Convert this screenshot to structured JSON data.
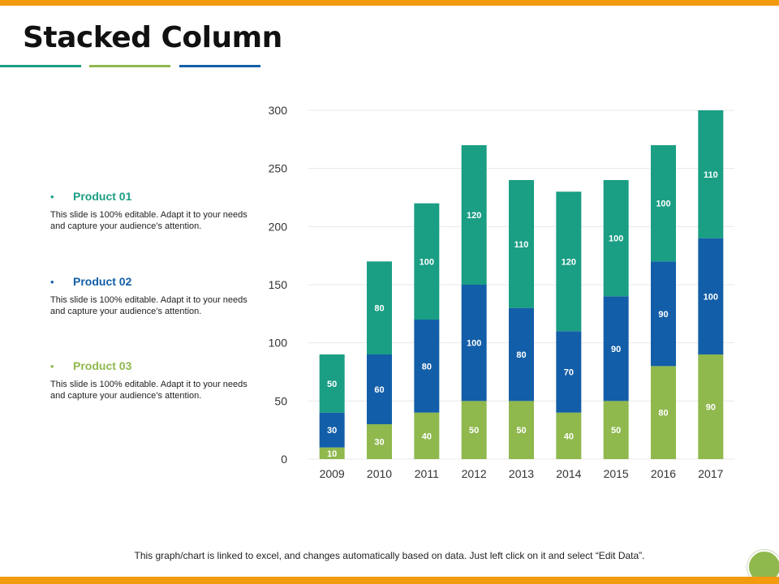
{
  "slide": {
    "title": "Stacked Column",
    "footer_note": "This graph/chart is linked to excel, and changes automatically based on data. Just left click on it and select “Edit Data”.",
    "bullet_glyph": "•"
  },
  "colors": {
    "top_bar": "#f29b0f",
    "bottom_bar": "#f29b0f",
    "accent_teal": "#1a9e84",
    "accent_green": "#8fb84d",
    "accent_blue": "#135ea8",
    "product_01": "#1a9e84",
    "product_02": "#135ea8",
    "product_03": "#8fb84d",
    "gridline": "#e8e8e8",
    "data_label": "#ffffff",
    "tick_label": "#333333"
  },
  "legend": [
    {
      "title": "Product 01",
      "description": "This slide is 100% editable. Adapt it to your needs and capture your audience’s attention."
    },
    {
      "title": "Product 02",
      "description": "This slide is 100% editable. Adapt it to your needs and capture your audience’s attention."
    },
    {
      "title": "Product 03",
      "description": "This slide is 100% editable. Adapt it to your needs and capture your audience’s attention."
    }
  ],
  "chart_data": {
    "type": "bar",
    "stacked": true,
    "title": "",
    "xlabel": "",
    "ylabel": "",
    "categories": [
      "2009",
      "2010",
      "2011",
      "2012",
      "2013",
      "2014",
      "2015",
      "2016",
      "2017"
    ],
    "series": [
      {
        "name": "Product 03",
        "color": "#8fb84d",
        "values": [
          10,
          30,
          40,
          50,
          50,
          40,
          50,
          80,
          90
        ]
      },
      {
        "name": "Product 02",
        "color": "#135ea8",
        "values": [
          30,
          60,
          80,
          100,
          80,
          70,
          90,
          90,
          100
        ]
      },
      {
        "name": "Product 01",
        "color": "#1a9e84",
        "values": [
          50,
          80,
          100,
          120,
          110,
          120,
          100,
          100,
          110
        ]
      }
    ],
    "ylim": [
      0,
      300
    ],
    "yticks": [
      0,
      50,
      100,
      150,
      200,
      250,
      300
    ],
    "grid": true,
    "legend_placement": "left",
    "data_labels": true
  }
}
